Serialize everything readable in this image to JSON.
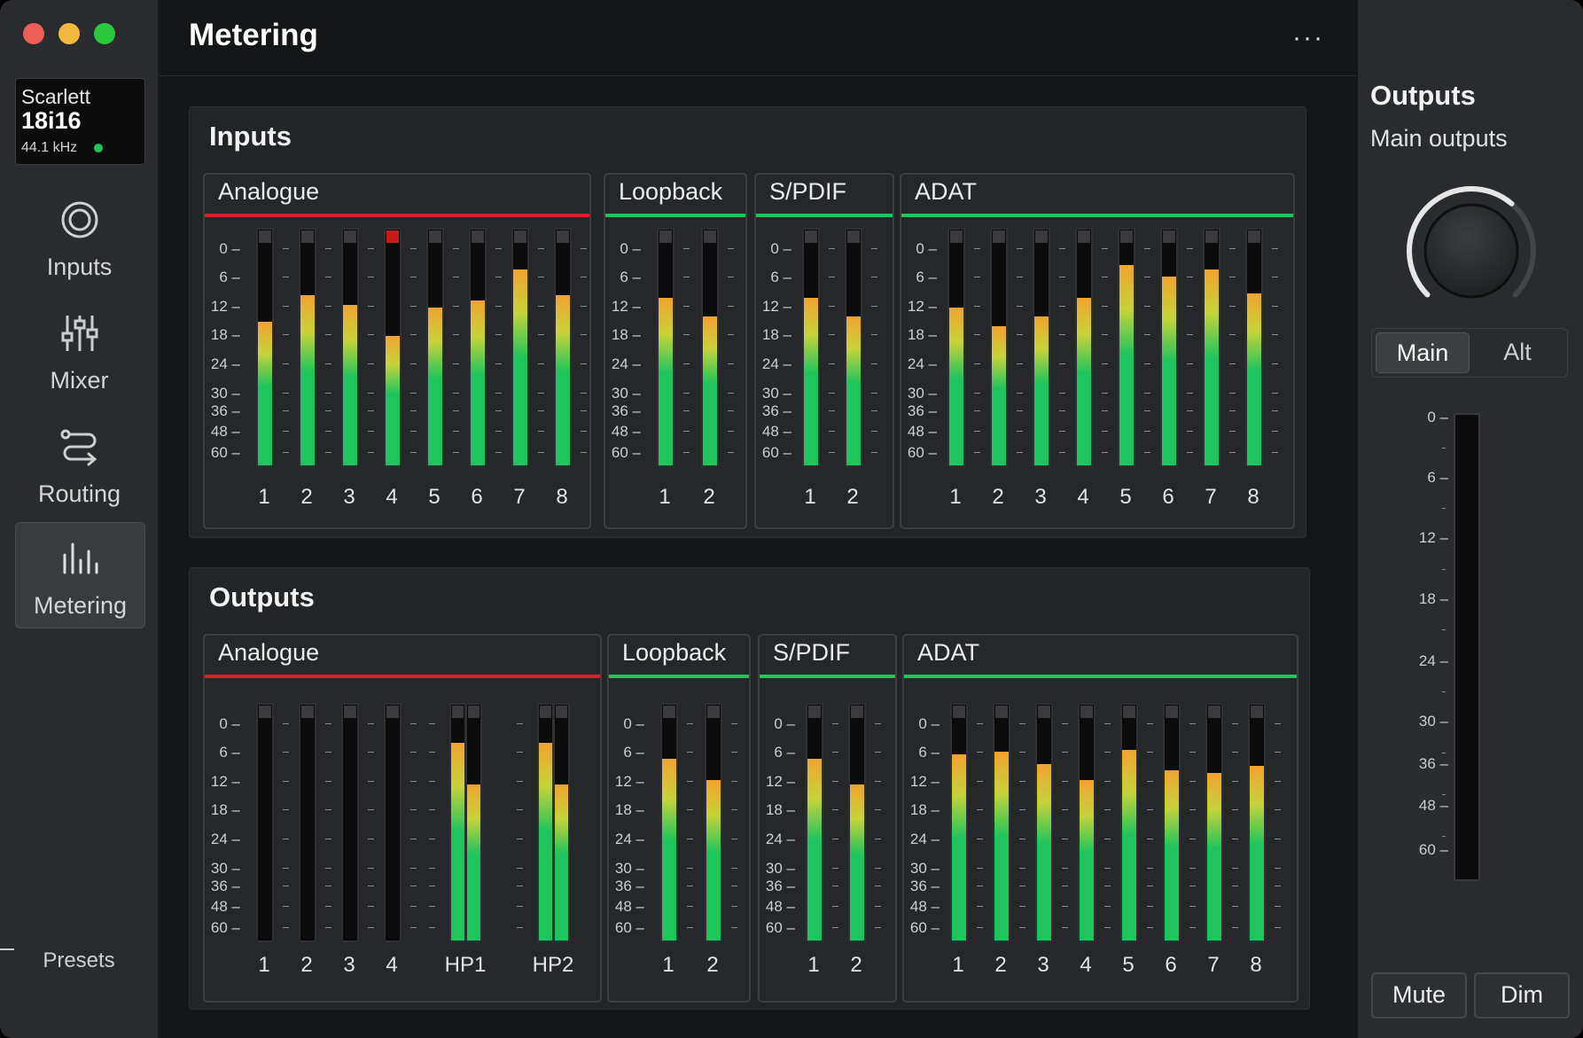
{
  "window": {
    "traffic_lights": [
      "#ee5f57",
      "#f4b83f",
      "#2bc840"
    ]
  },
  "device": {
    "brand": "Scarlett",
    "model": "18i16",
    "sample_rate": "44.1 kHz",
    "status_color": "#1fc45c"
  },
  "sidebar": {
    "items": [
      {
        "label": "Inputs",
        "icon": "inputs-ring-icon"
      },
      {
        "label": "Mixer",
        "icon": "mixer-faders-icon"
      },
      {
        "label": "Routing",
        "icon": "routing-icon"
      },
      {
        "label": "Metering",
        "icon": "metering-bars-icon",
        "active": true
      }
    ],
    "presets": "Presets"
  },
  "header": {
    "title": "Metering",
    "more": "···"
  },
  "scale_labels": [
    "0",
    "6",
    "12",
    "18",
    "24",
    "30",
    "36",
    "48",
    "60"
  ],
  "inputs": {
    "title": "Inputs",
    "groups": [
      {
        "name": "Analogue",
        "accent": "#d8232a",
        "channels": [
          {
            "label": "1",
            "level": 0.61
          },
          {
            "label": "2",
            "level": 0.72
          },
          {
            "label": "3",
            "level": 0.68
          },
          {
            "label": "4",
            "level": 0.55,
            "clip": true
          },
          {
            "label": "5",
            "level": 0.67
          },
          {
            "label": "6",
            "level": 0.7
          },
          {
            "label": "7",
            "level": 0.83
          },
          {
            "label": "8",
            "level": 0.72
          }
        ]
      },
      {
        "name": "Loopback",
        "accent": "#1fc45c",
        "channels": [
          {
            "label": "1",
            "level": 0.71
          },
          {
            "label": "2",
            "level": 0.63
          }
        ]
      },
      {
        "name": "S/PDIF",
        "accent": "#1fc45c",
        "channels": [
          {
            "label": "1",
            "level": 0.71
          },
          {
            "label": "2",
            "level": 0.63
          }
        ]
      },
      {
        "name": "ADAT",
        "accent": "#1fc45c",
        "channels": [
          {
            "label": "1",
            "level": 0.67
          },
          {
            "label": "2",
            "level": 0.59
          },
          {
            "label": "3",
            "level": 0.63
          },
          {
            "label": "4",
            "level": 0.71
          },
          {
            "label": "5",
            "level": 0.85
          },
          {
            "label": "6",
            "level": 0.8
          },
          {
            "label": "7",
            "level": 0.83
          },
          {
            "label": "8",
            "level": 0.73
          }
        ]
      }
    ]
  },
  "outputs": {
    "title": "Outputs",
    "groups": [
      {
        "name": "Analogue",
        "accent": "#d8232a",
        "channels": [
          {
            "label": "1",
            "level": 0
          },
          {
            "label": "2",
            "level": 0
          },
          {
            "label": "3",
            "level": 0
          },
          {
            "label": "4",
            "level": 0
          },
          {
            "label": "HP1",
            "level": [
              0.84,
              0.66
            ],
            "stereo": true
          },
          {
            "label": "HP2",
            "level": [
              0.84,
              0.66
            ],
            "stereo": true
          }
        ]
      },
      {
        "name": "Loopback",
        "accent": "#1fc45c",
        "channels": [
          {
            "label": "1",
            "level": 0.77
          },
          {
            "label": "2",
            "level": 0.68
          }
        ]
      },
      {
        "name": "S/PDIF",
        "accent": "#1fc45c",
        "channels": [
          {
            "label": "1",
            "level": 0.77
          },
          {
            "label": "2",
            "level": 0.66
          }
        ]
      },
      {
        "name": "ADAT",
        "accent": "#1fc45c",
        "channels": [
          {
            "label": "1",
            "level": 0.79
          },
          {
            "label": "2",
            "level": 0.8
          },
          {
            "label": "3",
            "level": 0.75
          },
          {
            "label": "4",
            "level": 0.68
          },
          {
            "label": "5",
            "level": 0.81
          },
          {
            "label": "6",
            "level": 0.72
          },
          {
            "label": "7",
            "level": 0.71
          },
          {
            "label": "8",
            "level": 0.74
          }
        ]
      }
    ]
  },
  "right_panel": {
    "title": "Outputs",
    "subtitle": "Main outputs",
    "segments": [
      "Main",
      "Alt"
    ],
    "selected_segment": "Main",
    "volume": 0.65,
    "scale_labels": [
      "0",
      "6",
      "12",
      "18",
      "24",
      "30",
      "36",
      "48",
      "60"
    ],
    "level": 0,
    "mute": "Mute",
    "dim": "Dim"
  },
  "colors": {
    "meter_green": "#1fc45c",
    "meter_yellow": "#c6d33a",
    "meter_orange": "#f2a330",
    "clip_red": "#c81a1a"
  }
}
